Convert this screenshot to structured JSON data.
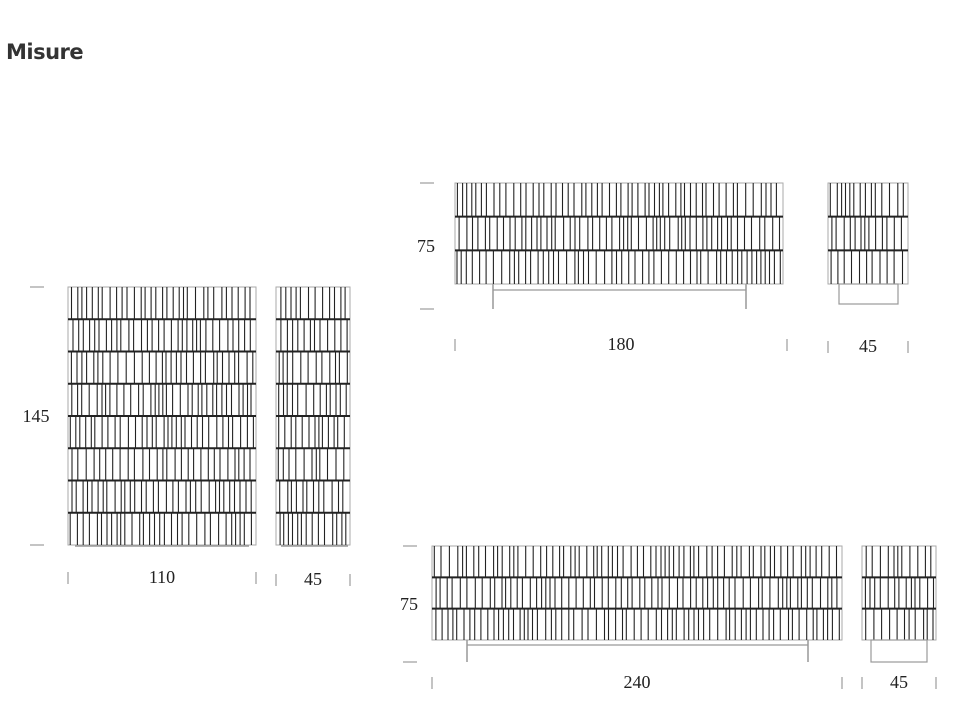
{
  "section_title": "Misure",
  "pieces": [
    {
      "name": "tall-cabinet",
      "height_label": "145",
      "width_label": "110",
      "depth_label": "45",
      "rows": 8
    },
    {
      "name": "sideboard-180",
      "height_label": "75",
      "width_label": "180",
      "depth_label": "45",
      "rows": 3
    },
    {
      "name": "sideboard-240",
      "height_label": "75",
      "width_label": "240",
      "depth_label": "45",
      "rows": 3
    }
  ],
  "colors": {
    "line": "#222222",
    "tick": "#888888",
    "base": "#999999"
  }
}
